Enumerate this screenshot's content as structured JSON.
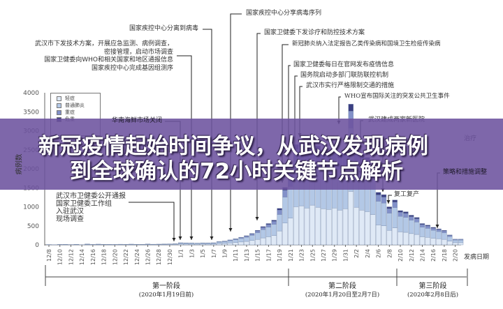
{
  "chart_data": {
    "type": "bar",
    "stacked": true,
    "ylabel": "病例数",
    "xlabel": "发病日期",
    "ylim": [
      0,
      4000
    ],
    "y_ticks": [
      0,
      500,
      1000,
      1500,
      2000,
      2500,
      3000,
      3500,
      4000
    ],
    "grid": false,
    "legend_placement": "top-left",
    "x_start": "12/8",
    "x_end": "2/21",
    "x_tick_labels": [
      "12/8",
      "12/10",
      "12/12",
      "12/14",
      "12/16",
      "12/18",
      "12/20",
      "12/22",
      "12/24",
      "12/26",
      "12/28",
      "12/30",
      "1/1",
      "1/3",
      "1/5",
      "1/7",
      "1/9",
      "1/11",
      "1/13",
      "1/15",
      "1/17",
      "1/19",
      "1/21",
      "1/23",
      "1/25",
      "1/27",
      "1/29",
      "1/31",
      "2/2",
      "2/4",
      "2/6",
      "2/8",
      "2/10",
      "2/12",
      "2/14",
      "2/16",
      "2/18",
      "2/20"
    ],
    "series": [
      {
        "name": "轻症",
        "color": "#dfe9f6",
        "values": [
          3,
          2,
          3,
          5,
          3,
          5,
          2,
          8,
          3,
          7,
          5,
          5,
          3,
          6,
          5,
          7,
          5,
          5,
          8,
          6,
          7,
          8,
          10,
          11,
          20,
          19,
          18,
          18,
          20,
          19,
          20,
          33,
          38,
          49,
          61,
          76,
          91,
          114,
          144,
          182,
          213,
          247,
          365,
          573,
          703,
          1003,
          1026,
          968,
          1044,
          988,
          950,
          931,
          968,
          912,
          950,
          1406,
          988,
          912,
          874,
          798,
          524,
          502,
          380,
          448,
          342,
          330,
          296,
          274,
          213,
          198,
          175,
          160,
          144,
          99,
          57,
          57
        ]
      },
      {
        "name": "普通肺炎",
        "color": "#b3c8e6",
        "values": [
          4,
          2,
          5,
          5,
          4,
          7,
          3,
          9,
          5,
          8,
          6,
          5,
          5,
          7,
          5,
          8,
          7,
          6,
          9,
          7,
          8,
          10,
          11,
          13,
          25,
          22,
          22,
          20,
          23,
          22,
          25,
          38,
          45,
          58,
          72,
          90,
          108,
          135,
          171,
          216,
          252,
          292,
          432,
          680,
          832,
          1188,
          1215,
          1148,
          1238,
          1170,
          1125,
          1102,
          1148,
          1080,
          1125,
          1665,
          1170,
          1080,
          1035,
          945,
          621,
          594,
          450,
          531,
          405,
          392,
          351,
          324,
          252,
          234,
          207,
          189,
          171,
          117,
          67,
          67
        ]
      },
      {
        "name": "重症",
        "color": "#8290c9",
        "values": [
          1,
          1,
          1,
          1,
          1,
          2,
          1,
          2,
          1,
          2,
          2,
          1,
          1,
          2,
          1,
          2,
          2,
          2,
          2,
          2,
          2,
          3,
          3,
          3,
          7,
          6,
          6,
          5,
          6,
          6,
          7,
          10,
          12,
          16,
          19,
          24,
          29,
          36,
          46,
          58,
          67,
          78,
          115,
          181,
          222,
          317,
          324,
          306,
          330,
          312,
          300,
          294,
          306,
          288,
          300,
          444,
          312,
          288,
          276,
          252,
          166,
          158,
          120,
          142,
          108,
          104,
          94,
          86,
          67,
          62,
          55,
          50,
          46,
          31,
          18,
          18
        ]
      },
      {
        "name": "危重",
        "color": "#3b3f82",
        "values": [
          0,
          0,
          1,
          1,
          0,
          1,
          0,
          1,
          1,
          1,
          1,
          1,
          1,
          1,
          1,
          1,
          1,
          1,
          1,
          1,
          1,
          1,
          1,
          1,
          3,
          3,
          2,
          2,
          3,
          3,
          3,
          4,
          5,
          7,
          8,
          10,
          12,
          15,
          19,
          24,
          28,
          33,
          48,
          76,
          93,
          132,
          135,
          128,
          138,
          130,
          125,
          123,
          128,
          120,
          125,
          185,
          130,
          120,
          115,
          105,
          69,
          66,
          50,
          59,
          45,
          44,
          39,
          36,
          28,
          26,
          23,
          21,
          19,
          13,
          8,
          8
        ]
      }
    ]
  },
  "annotations": {
    "cdc_isolate": "国家疾控中心分离到病毒",
    "wuhan_plan": [
      "武汉市下发技术方案，开展应急监测、病例调查，",
      "密接管理，启动市场调查",
      "国家卫健委向WHO和相关国家和地区通报信息",
      "国家疾控中心完成基因组测序"
    ],
    "share_sequence": "国家疾控中心分享病毒序列",
    "market_closed": "华南海鲜市场关闭",
    "wuhan_notice": [
      "武汉市卫健委公开通报",
      "国家卫健委工作组",
      "入驻武汉",
      "现场调查"
    ],
    "nhc_plan": "国家卫健委下发诊疗和防控技术方案",
    "class_b": "新冠肺炎纳入法定报告乙类传染病和国境卫生检疫传染病",
    "daily_release": "国家卫健委每日在官网发布疫情信息",
    "state_council": "国务院启动多部门联防联控机制",
    "traffic": "武汉市实行严格限制交通的措施",
    "who_pheic": "WHO宣布国际关注的突发公共卫生事件",
    "hospitals": "武汉建成两家新医院",
    "treatment": "治疗",
    "resume_work": "复工复产",
    "strategy": "策略和措施调整"
  },
  "phases": [
    {
      "name": "第一阶段",
      "range": "(2020年1月19日前)"
    },
    {
      "name": "第二阶段",
      "range": "(2020年1月20日至2月7日)"
    },
    {
      "name": "第三阶段",
      "range": "(2020年2月8日后)"
    }
  ],
  "banner": {
    "line1": "新冠疫情起始时间争议，从武汉发现病例",
    "line2": "到全球确认的72小时关键节点解析",
    "color": "#6c529e"
  }
}
